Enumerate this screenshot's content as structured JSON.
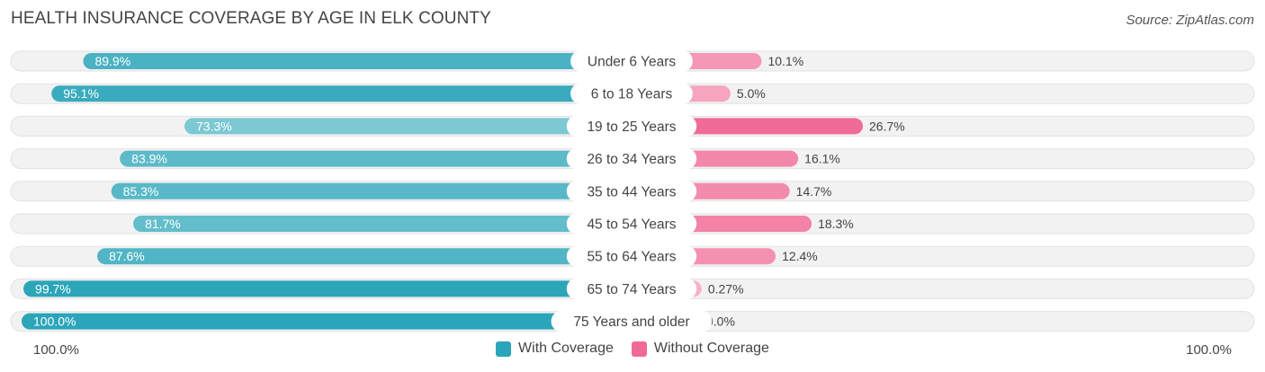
{
  "title": "HEALTH INSURANCE COVERAGE BY AGE IN ELK COUNTY",
  "source": "Source: ZipAtlas.com",
  "axis": {
    "left_label": "100.0%",
    "right_label": "100.0%"
  },
  "legend": {
    "with_label": "With Coverage",
    "without_label": "Without Coverage"
  },
  "colors": {
    "with_strong": "#2ba5b9",
    "with_light": "#86ccd6",
    "without_strong": "#f06a96",
    "without_light": "#f7b3c8",
    "track": "#eeeeee"
  },
  "chart_data": {
    "type": "bar",
    "orientation": "horizontal-diverging",
    "title": "HEALTH INSURANCE COVERAGE BY AGE IN ELK COUNTY",
    "xlim": [
      -100,
      100
    ],
    "categories": [
      "Under 6 Years",
      "6 to 18 Years",
      "19 to 25 Years",
      "26 to 34 Years",
      "35 to 44 Years",
      "45 to 54 Years",
      "55 to 64 Years",
      "65 to 74 Years",
      "75 Years and older"
    ],
    "series": [
      {
        "name": "With Coverage",
        "values": [
          89.9,
          95.1,
          73.3,
          83.9,
          85.3,
          81.7,
          87.6,
          99.7,
          100.0
        ],
        "labels": [
          "89.9%",
          "95.1%",
          "73.3%",
          "83.9%",
          "85.3%",
          "81.7%",
          "87.6%",
          "99.7%",
          "100.0%"
        ]
      },
      {
        "name": "Without Coverage",
        "values": [
          10.1,
          5.0,
          26.7,
          16.1,
          14.7,
          18.3,
          12.4,
          0.27,
          0.0
        ],
        "labels": [
          "10.1%",
          "5.0%",
          "26.7%",
          "16.1%",
          "14.7%",
          "18.3%",
          "12.4%",
          "0.27%",
          "0.0%"
        ]
      }
    ]
  }
}
